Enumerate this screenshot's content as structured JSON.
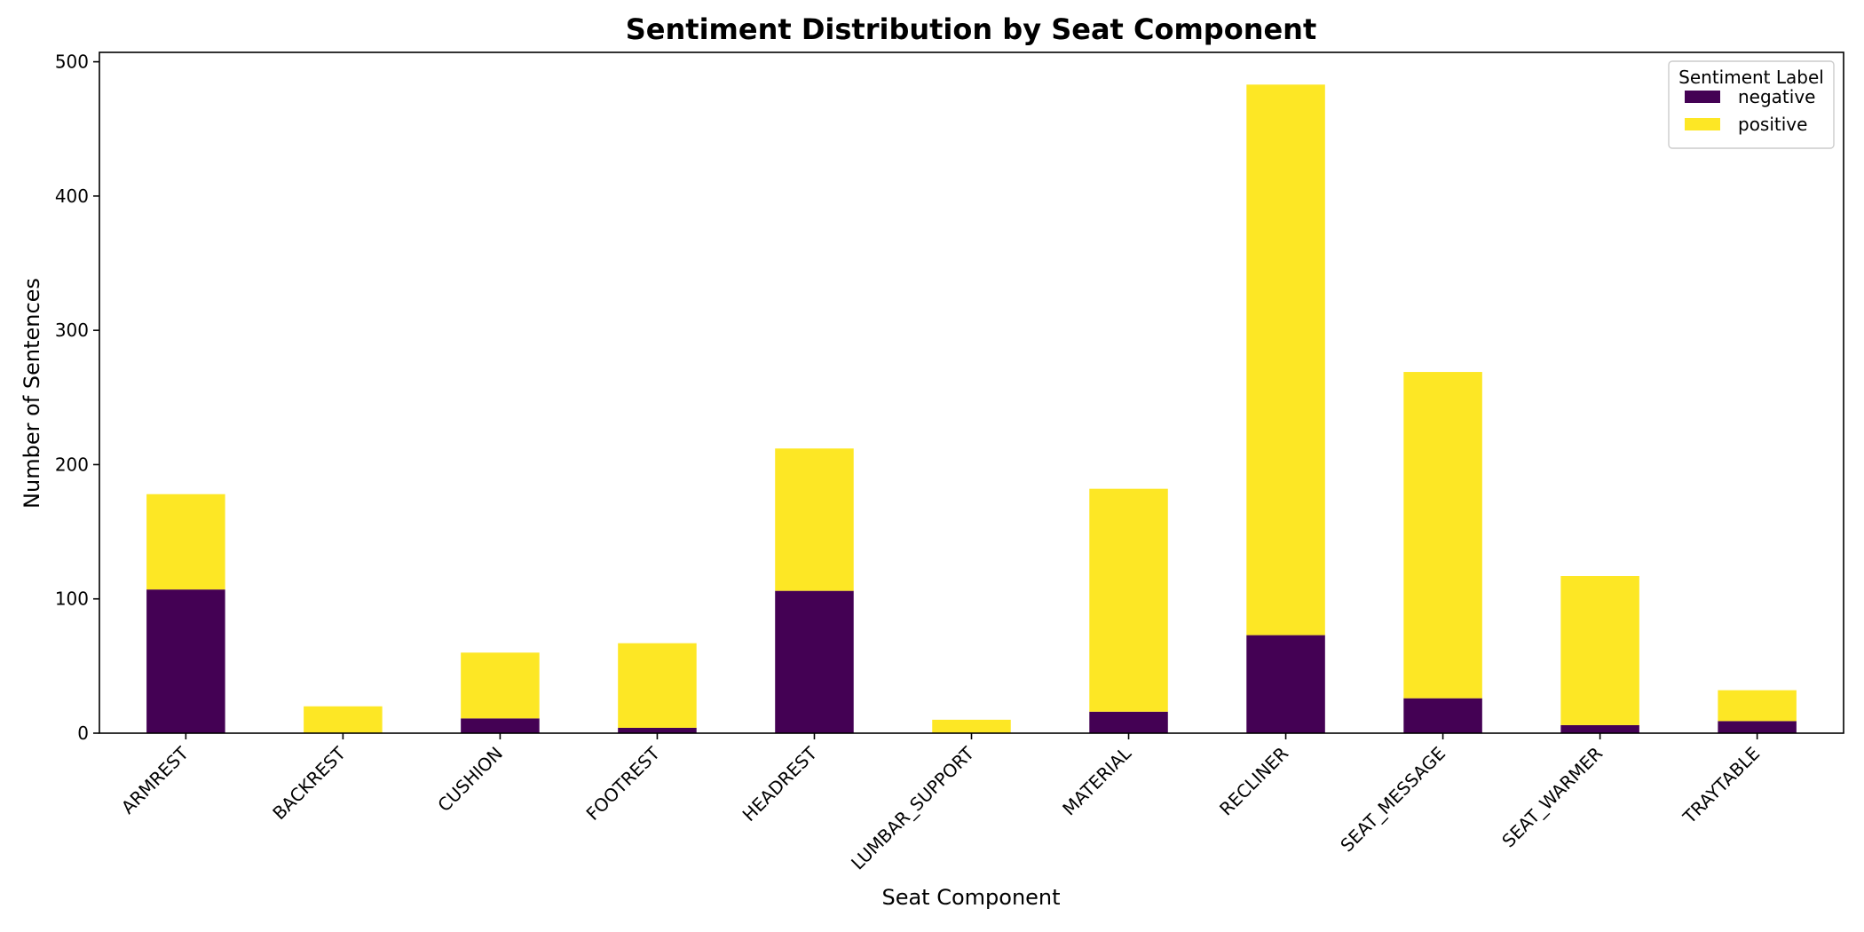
{
  "chart_data": {
    "type": "bar",
    "stacked": true,
    "title": "Sentiment Distribution by Seat Component",
    "xlabel": "Seat Component",
    "ylabel": "Number of Sentences",
    "ylim": [
      0,
      507
    ],
    "yticks": [
      0,
      100,
      200,
      300,
      400,
      500
    ],
    "grid": false,
    "legend": {
      "title": "Sentiment Label",
      "placement": "top-right"
    },
    "categories": [
      "ARMREST",
      "BACKREST",
      "CUSHION",
      "FOOTREST",
      "HEADREST",
      "LUMBAR_SUPPORT",
      "MATERIAL",
      "RECLINER",
      "SEAT_MESSAGE",
      "SEAT_WARMER",
      "TRAYTABLE"
    ],
    "series": [
      {
        "name": "negative",
        "color": "#440154",
        "values": [
          107,
          0,
          11,
          4,
          106,
          0,
          16,
          73,
          26,
          6,
          9
        ]
      },
      {
        "name": "positive",
        "color": "#fde725",
        "values": [
          71,
          20,
          49,
          63,
          106,
          10,
          166,
          410,
          243,
          111,
          23
        ]
      }
    ]
  }
}
